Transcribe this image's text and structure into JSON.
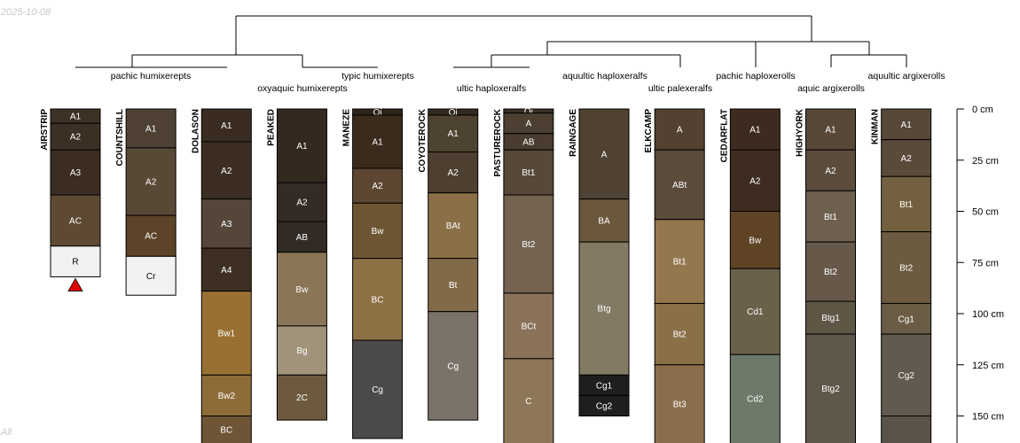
{
  "date_label": "2025-10-08",
  "footer_label": "All",
  "chart_data": {
    "type": "soil-profile-sketch",
    "depth_unit": "cm",
    "depth_axis": {
      "ticks": [
        0,
        25,
        50,
        75,
        100,
        125,
        150
      ],
      "tick_labels": [
        "0 cm",
        "25 cm",
        "50 cm",
        "75 cm",
        "100 cm",
        "125 cm",
        "150 cm"
      ]
    },
    "taxon_labels": [
      "pachic humixerepts",
      "oxyaquic humixerepts",
      "typic humixerepts",
      "ultic haploxeralfs",
      "aquultic haploxeralfs",
      "ultic palexeralfs",
      "pachic haploxerolls",
      "aquic argixerolls",
      "aquultic argixerolls"
    ],
    "profiles": [
      {
        "name": "AIRSTRIP",
        "bedrock": true,
        "horizons": [
          {
            "name": "A1",
            "top": 0,
            "bottom": 7,
            "color": "#3e3125"
          },
          {
            "name": "A2",
            "top": 7,
            "bottom": 20,
            "color": "#3c2f23"
          },
          {
            "name": "A3",
            "top": 20,
            "bottom": 42,
            "color": "#3b2d21"
          },
          {
            "name": "AC",
            "top": 42,
            "bottom": 67,
            "color": "#5e4a33"
          },
          {
            "name": "R",
            "top": 67,
            "bottom": 82,
            "color": "#f2f2f2"
          }
        ]
      },
      {
        "name": "COUNTSHILL",
        "bedrock": false,
        "horizons": [
          {
            "name": "A1",
            "top": 0,
            "bottom": 19,
            "color": "#4f4235"
          },
          {
            "name": "A2",
            "top": 19,
            "bottom": 52,
            "color": "#584836"
          },
          {
            "name": "AC",
            "top": 52,
            "bottom": 72,
            "color": "#5d4327"
          },
          {
            "name": "Cr",
            "top": 72,
            "bottom": 91,
            "color": "#f2f2f2"
          }
        ]
      },
      {
        "name": "DOLASON",
        "bedrock": false,
        "horizons": [
          {
            "name": "A1",
            "top": 0,
            "bottom": 16,
            "color": "#3a2c20"
          },
          {
            "name": "A2",
            "top": 16,
            "bottom": 44,
            "color": "#3c2e22"
          },
          {
            "name": "A3",
            "top": 44,
            "bottom": 68,
            "color": "#54473a"
          },
          {
            "name": "A4",
            "top": 68,
            "bottom": 89,
            "color": "#3d3022"
          },
          {
            "name": "Bw1",
            "top": 89,
            "bottom": 130,
            "color": "#987132"
          },
          {
            "name": "Bw2",
            "top": 130,
            "bottom": 150,
            "color": "#8e6c38"
          },
          {
            "name": "BC",
            "top": 150,
            "bottom": 165,
            "color": "#6e5535"
          }
        ]
      },
      {
        "name": "PEAKED",
        "bedrock": false,
        "horizons": [
          {
            "name": "A1",
            "top": 0,
            "bottom": 36,
            "color": "#34291f"
          },
          {
            "name": "A2",
            "top": 36,
            "bottom": 55,
            "color": "#342b24"
          },
          {
            "name": "AB",
            "top": 55,
            "bottom": 70,
            "color": "#322b25"
          },
          {
            "name": "Bw",
            "top": 70,
            "bottom": 106,
            "color": "#8a7656"
          },
          {
            "name": "Bg",
            "top": 106,
            "bottom": 130,
            "color": "#a0937a"
          },
          {
            "name": "2C",
            "top": 130,
            "bottom": 152,
            "color": "#6d5a3e"
          }
        ]
      },
      {
        "name": "MANEZE",
        "bedrock": false,
        "horizons": [
          {
            "name": "Oi",
            "top": 0,
            "bottom": 3,
            "color": "#2f2418"
          },
          {
            "name": "A1",
            "top": 3,
            "bottom": 29,
            "color": "#3b2b1d"
          },
          {
            "name": "A2",
            "top": 29,
            "bottom": 46,
            "color": "#5d4732"
          },
          {
            "name": "Bw",
            "top": 46,
            "bottom": 73,
            "color": "#6e5533"
          },
          {
            "name": "BC",
            "top": 73,
            "bottom": 113,
            "color": "#8d7145"
          },
          {
            "name": "Cg",
            "top": 113,
            "bottom": 161,
            "color": "#4b4a49"
          }
        ]
      },
      {
        "name": "COYOTEROCK",
        "bedrock": false,
        "horizons": [
          {
            "name": "Oi",
            "top": 0,
            "bottom": 3,
            "color": "#332a20"
          },
          {
            "name": "A1",
            "top": 3,
            "bottom": 21,
            "color": "#4e4231"
          },
          {
            "name": "A2",
            "top": 21,
            "bottom": 41,
            "color": "#4d4030"
          },
          {
            "name": "BAt",
            "top": 41,
            "bottom": 73,
            "color": "#8a6f47"
          },
          {
            "name": "Bt",
            "top": 73,
            "bottom": 99,
            "color": "#826a48"
          },
          {
            "name": "Cg",
            "top": 99,
            "bottom": 152,
            "color": "#7b736a"
          }
        ]
      },
      {
        "name": "PASTUREROCK",
        "bedrock": false,
        "horizons": [
          {
            "name": "Oi",
            "top": 0,
            "bottom": 2,
            "color": "#3a2f24"
          },
          {
            "name": "A",
            "top": 2,
            "bottom": 12,
            "color": "#4d3f31"
          },
          {
            "name": "AB",
            "top": 12,
            "bottom": 20,
            "color": "#4a3c2e"
          },
          {
            "name": "Bt1",
            "top": 20,
            "bottom": 42,
            "color": "#584838"
          },
          {
            "name": "Bt2",
            "top": 42,
            "bottom": 90,
            "color": "#736350"
          },
          {
            "name": "BCt",
            "top": 90,
            "bottom": 122,
            "color": "#8a7259"
          },
          {
            "name": "C",
            "top": 122,
            "bottom": 165,
            "color": "#8e7759"
          }
        ]
      },
      {
        "name": "RAINGAGE",
        "bedrock": false,
        "horizons": [
          {
            "name": "A",
            "top": 0,
            "bottom": 44,
            "color": "#504233"
          },
          {
            "name": "BA",
            "top": 44,
            "bottom": 65,
            "color": "#6b573c"
          },
          {
            "name": "Btg",
            "top": 65,
            "bottom": 130,
            "color": "#827a62"
          },
          {
            "name": "Cg1",
            "top": 130,
            "bottom": 140,
            "color": "#1d1f1c"
          },
          {
            "name": "Cg2",
            "top": 140,
            "bottom": 150,
            "color": "#1f201e"
          }
        ]
      },
      {
        "name": "ELKCAMP",
        "bedrock": false,
        "horizons": [
          {
            "name": "A",
            "top": 0,
            "bottom": 20,
            "color": "#534231"
          },
          {
            "name": "ABt",
            "top": 20,
            "bottom": 54,
            "color": "#5b4b3b"
          },
          {
            "name": "Bt1",
            "top": 54,
            "bottom": 95,
            "color": "#95774e"
          },
          {
            "name": "Bt2",
            "top": 95,
            "bottom": 125,
            "color": "#8a7047"
          },
          {
            "name": "Bt3",
            "top": 125,
            "bottom": 165,
            "color": "#8a6e4b"
          }
        ]
      },
      {
        "name": "CEDARFLAT",
        "bedrock": false,
        "horizons": [
          {
            "name": "A1",
            "top": 0,
            "bottom": 20,
            "color": "#3e2b1f"
          },
          {
            "name": "A2",
            "top": 20,
            "bottom": 50,
            "color": "#3e2c20"
          },
          {
            "name": "Bw",
            "top": 50,
            "bottom": 78,
            "color": "#5e4425"
          },
          {
            "name": "Cd1",
            "top": 78,
            "bottom": 120,
            "color": "#6b604a"
          },
          {
            "name": "Cd2",
            "top": 120,
            "bottom": 165,
            "color": "#6d7a69"
          }
        ]
      },
      {
        "name": "HIGHYORK",
        "bedrock": false,
        "horizons": [
          {
            "name": "A1",
            "top": 0,
            "bottom": 20,
            "color": "#574838"
          },
          {
            "name": "A2",
            "top": 20,
            "bottom": 40,
            "color": "#5b4c3c"
          },
          {
            "name": "Bt1",
            "top": 40,
            "bottom": 65,
            "color": "#6e604e"
          },
          {
            "name": "Bt2",
            "top": 65,
            "bottom": 94,
            "color": "#67594a"
          },
          {
            "name": "Btg1",
            "top": 94,
            "bottom": 110,
            "color": "#5f5646"
          },
          {
            "name": "Btg2",
            "top": 110,
            "bottom": 165,
            "color": "#5e574a"
          }
        ]
      },
      {
        "name": "KINMAN",
        "bedrock": false,
        "horizons": [
          {
            "name": "A1",
            "top": 0,
            "bottom": 15,
            "color": "#57483a"
          },
          {
            "name": "A2",
            "top": 15,
            "bottom": 33,
            "color": "#5a4a3a"
          },
          {
            "name": "Bt1",
            "top": 33,
            "bottom": 60,
            "color": "#73603f"
          },
          {
            "name": "Bt2",
            "top": 60,
            "bottom": 95,
            "color": "#6c5b40"
          },
          {
            "name": "Cg1",
            "top": 95,
            "bottom": 110,
            "color": "#6a5c45"
          },
          {
            "name": "Cg2",
            "top": 110,
            "bottom": 150,
            "color": "#625a4e"
          },
          {
            "name": "",
            "top": 150,
            "bottom": 165,
            "color": "#5a5349"
          }
        ]
      }
    ]
  }
}
